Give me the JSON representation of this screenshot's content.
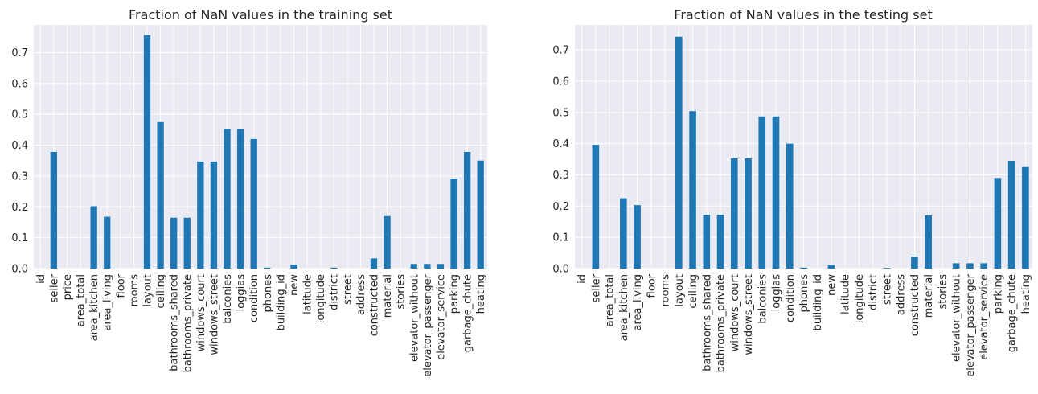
{
  "chart_data": [
    {
      "type": "bar",
      "title": "Fraction of NaN values in the training set",
      "xlabel": "",
      "ylabel": "",
      "ylim": [
        0,
        0.79
      ],
      "yticks": [
        0.0,
        0.1,
        0.2,
        0.3,
        0.4,
        0.5,
        0.6,
        0.7
      ],
      "ytick_labels": [
        "0.0",
        "0.1",
        "0.2",
        "0.3",
        "0.4",
        "0.5",
        "0.6",
        "0.7"
      ],
      "grid": true,
      "bar_color": "#1f77b4",
      "background_color": "#eaeaf2",
      "categories": [
        "id",
        "seller",
        "price",
        "area_total",
        "area_kitchen",
        "area_living",
        "floor",
        "rooms",
        "layout",
        "ceiling",
        "bathrooms_shared",
        "bathrooms_private",
        "windows_court",
        "windows_street",
        "balconies",
        "loggias",
        "condition",
        "phones",
        "building_id",
        "new",
        "latitude",
        "longitude",
        "district",
        "street",
        "address",
        "constructed",
        "material",
        "stories",
        "elevator_without",
        "elevator_passenger",
        "elevator_service",
        "parking",
        "garbage_chute",
        "heating"
      ],
      "values": [
        0,
        0.378,
        0,
        0,
        0.202,
        0.168,
        0,
        0,
        0.757,
        0.475,
        0.165,
        0.165,
        0.347,
        0.347,
        0.453,
        0.453,
        0.42,
        0.003,
        0,
        0.013,
        0,
        0,
        0.003,
        0,
        0,
        0.033,
        0.17,
        0,
        0.015,
        0.015,
        0.015,
        0.292,
        0.378,
        0.35
      ]
    },
    {
      "type": "bar",
      "title": "Fraction of NaN values in the testing set",
      "xlabel": "",
      "ylabel": "",
      "ylim": [
        0,
        0.78
      ],
      "yticks": [
        0.0,
        0.1,
        0.2,
        0.3,
        0.4,
        0.5,
        0.6,
        0.7
      ],
      "ytick_labels": [
        "0.0",
        "0.1",
        "0.2",
        "0.3",
        "0.4",
        "0.5",
        "0.6",
        "0.7"
      ],
      "grid": true,
      "bar_color": "#1f77b4",
      "background_color": "#eaeaf2",
      "categories": [
        "id",
        "seller",
        "area_total",
        "area_kitchen",
        "area_living",
        "floor",
        "rooms",
        "layout",
        "ceiling",
        "bathrooms_shared",
        "bathrooms_private",
        "windows_court",
        "windows_street",
        "balconies",
        "loggias",
        "condition",
        "phones",
        "building_id",
        "new",
        "latitude",
        "longitude",
        "district",
        "street",
        "address",
        "constructed",
        "material",
        "stories",
        "elevator_without",
        "elevator_passenger",
        "elevator_service",
        "parking",
        "garbage_chute",
        "heating"
      ],
      "values": [
        0,
        0.396,
        0,
        0.225,
        0.203,
        0,
        0,
        0.742,
        0.504,
        0.172,
        0.172,
        0.353,
        0.353,
        0.487,
        0.487,
        0.4,
        0.003,
        0,
        0.012,
        0,
        0,
        0,
        0.002,
        0,
        0.038,
        0.17,
        0,
        0.017,
        0.017,
        0.017,
        0.29,
        0.345,
        0.325
      ]
    }
  ]
}
